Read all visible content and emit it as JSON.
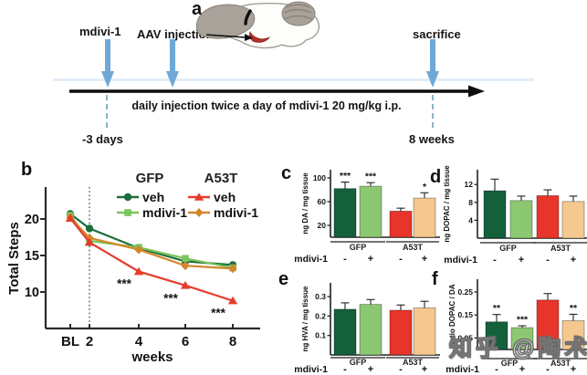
{
  "panel_a": {
    "label": "a",
    "mdivi_label": "mdivi-1",
    "aav_label": "AAV injection",
    "sacrifice_label": "sacrifice",
    "timeline_caption": "daily injection twice a day of mdivi-1 20 mg/kg i.p.",
    "start_label": "-3 days",
    "end_label": "8 weeks"
  },
  "watermark": "知乎 @陶术",
  "colors": {
    "gfp_veh_green": "#1b6e3d",
    "gfp_mdivi_light_green": "#7cc35e",
    "a53t_veh_red": "#e63c2c",
    "a53t_mdivi_orange": "#d4862a",
    "a53t_mdivi_bar_tan": "#f4c88e",
    "injection_arrow_blue": "#6fa8d6",
    "timeline_black": "#0d0d0d"
  },
  "chart_data": [
    {
      "id": "b",
      "panel_label": "b",
      "type": "line",
      "ylabel": "Total Steps",
      "xlabel": "weeks",
      "categories": [
        "BL",
        "2",
        "4",
        "6",
        "8"
      ],
      "yticks": [
        10,
        15,
        20
      ],
      "ylim": [
        5,
        24
      ],
      "vline_category": "2",
      "series": [
        {
          "name": "GFP veh",
          "marker": "circle",
          "color": "#1b6e3d",
          "values": [
            20.7,
            18.7,
            16.0,
            14.2,
            13.7
          ]
        },
        {
          "name": "GFP mdivi-1",
          "marker": "square",
          "color": "#7cc35e",
          "values": [
            20.5,
            17.0,
            16.1,
            14.6,
            13.3
          ]
        },
        {
          "name": "A53T mdivi-1",
          "marker": "diamond",
          "color": "#d4862a",
          "values": [
            20.2,
            17.4,
            15.8,
            13.6,
            13.2
          ]
        },
        {
          "name": "A53T veh",
          "marker": "triangle",
          "color": "#e63c2c",
          "values": [
            20.1,
            16.8,
            12.8,
            10.9,
            8.8
          ]
        }
      ],
      "annotations": [
        {
          "x": "4",
          "y": 11.2,
          "text": "***"
        },
        {
          "x": "6",
          "y": 9.2,
          "text": "***"
        },
        {
          "x": "8",
          "y": 7.2,
          "text": "***"
        }
      ],
      "legend": {
        "groups": [
          {
            "label": "GFP",
            "entries": [
              {
                "label": "veh",
                "marker": "circle",
                "color": "#1b6e3d"
              },
              {
                "label": "mdivi-1",
                "marker": "square",
                "color": "#7cc35e"
              }
            ]
          },
          {
            "label": "A53T",
            "entries": [
              {
                "label": "veh",
                "marker": "triangle",
                "color": "#e63c2c"
              },
              {
                "label": "mdivi-1",
                "marker": "diamond",
                "color": "#d4862a"
              }
            ]
          }
        ]
      }
    },
    {
      "id": "c",
      "panel_label": "c",
      "type": "bar",
      "ylabel": "ng DA / mg tissue",
      "yticks": [
        20,
        60,
        100
      ],
      "ylim": [
        0,
        115
      ],
      "categories": [
        "GFP veh",
        "GFP mdivi-1",
        "A53T veh",
        "A53T mdivi-1"
      ],
      "values": [
        82,
        86,
        44,
        66
      ],
      "errors": [
        11,
        6,
        5,
        9
      ],
      "sig": [
        "***",
        "***",
        "",
        "*"
      ],
      "colors": [
        "#14603a",
        "#8cc871",
        "#e8342a",
        "#f4c88e"
      ],
      "groups": [
        {
          "label": "GFP",
          "span": [
            0,
            1
          ]
        },
        {
          "label": "A53T",
          "span": [
            2,
            3
          ]
        }
      ],
      "mdivi_label": "mdivi-1",
      "mdivi_signs": [
        "-",
        "+",
        "-",
        "+"
      ]
    },
    {
      "id": "d",
      "panel_label": "d",
      "type": "bar",
      "ylabel": "ng DOPAC / mg tissue",
      "yticks": [
        4,
        8,
        12
      ],
      "ylim": [
        0,
        15.5
      ],
      "categories": [
        "GFP veh",
        "GFP mdivi-1",
        "A53T veh",
        "A53T mdivi-1"
      ],
      "values": [
        10.6,
        8.4,
        9.5,
        8.2
      ],
      "errors": [
        2.6,
        1.0,
        1.3,
        1.2
      ],
      "sig": [
        "",
        "",
        "",
        ""
      ],
      "colors": [
        "#14603a",
        "#8cc871",
        "#e8342a",
        "#f4c88e"
      ],
      "groups": [
        {
          "label": "GFP",
          "span": [
            0,
            1
          ]
        },
        {
          "label": "A53T",
          "span": [
            2,
            3
          ]
        }
      ],
      "mdivi_label": "mdivi-1",
      "mdivi_signs": [
        "-",
        "+",
        "-",
        "+"
      ]
    },
    {
      "id": "e",
      "panel_label": "e",
      "type": "bar",
      "ylabel": "ng HVA / mg tissue",
      "yticks": [
        0.1,
        0.2,
        0.3
      ],
      "ylim": [
        0,
        0.38
      ],
      "categories": [
        "GFP veh",
        "GFP mdivi-1",
        "A53T veh",
        "A53T mdivi-1"
      ],
      "values": [
        0.235,
        0.26,
        0.23,
        0.242
      ],
      "errors": [
        0.033,
        0.025,
        0.027,
        0.034
      ],
      "sig": [
        "",
        "",
        "",
        ""
      ],
      "colors": [
        "#14603a",
        "#8cc871",
        "#e8342a",
        "#f4c88e"
      ],
      "groups": [
        {
          "label": "GFP",
          "span": [
            0,
            1
          ]
        },
        {
          "label": "A53T",
          "span": [
            2,
            3
          ]
        }
      ],
      "mdivi_label": "mdivi-1",
      "mdivi_signs": [
        "-",
        "+",
        "-",
        "+"
      ]
    },
    {
      "id": "f",
      "panel_label": "f",
      "type": "bar",
      "ylabel": "ratio DOPAC / DA",
      "yticks": [
        0.05,
        0.15,
        0.25
      ],
      "ylim": [
        0,
        0.31
      ],
      "categories": [
        "GFP veh",
        "GFP mdivi-1",
        "A53T veh",
        "A53T mdivi-1"
      ],
      "values": [
        0.12,
        0.095,
        0.215,
        0.125
      ],
      "errors": [
        0.032,
        0.008,
        0.028,
        0.028
      ],
      "sig": [
        "**",
        "***",
        "",
        "**"
      ],
      "colors": [
        "#14603a",
        "#8cc871",
        "#e8342a",
        "#f4c88e"
      ],
      "groups": [
        {
          "label": "GFP",
          "span": [
            0,
            1
          ]
        },
        {
          "label": "A53T",
          "span": [
            2,
            3
          ]
        }
      ],
      "mdivi_label": "mdivi-1",
      "mdivi_signs": [
        "-",
        "+",
        "-",
        "+"
      ]
    }
  ]
}
